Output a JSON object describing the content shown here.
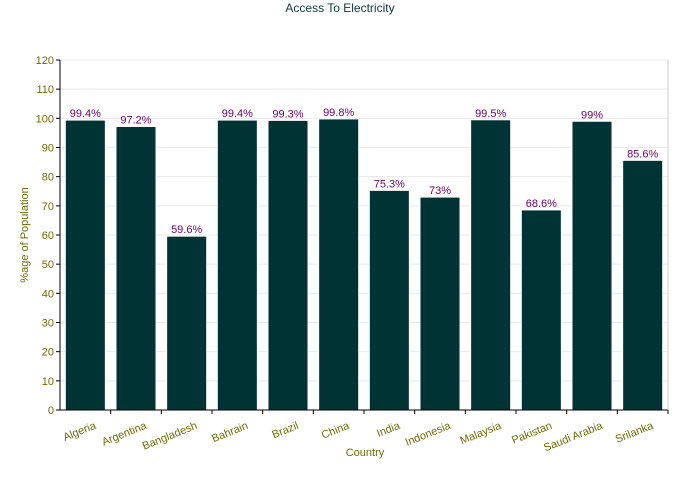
{
  "chart_data": {
    "type": "bar",
    "title": "Access To Electricity",
    "xlabel": "Country",
    "ylabel": "%age of Population",
    "categories": [
      "Algeria",
      "Argentina",
      "Bangladesh",
      "Bahrain",
      "Brazil",
      "China",
      "India",
      "Indonesia",
      "Malaysia",
      "Pakistan",
      "Saudi Arabia",
      "Srilanka"
    ],
    "values": [
      99.4,
      97.2,
      59.6,
      99.4,
      99.3,
      99.8,
      75.3,
      73,
      99.5,
      68.6,
      99,
      85.6
    ],
    "data_labels": [
      "99.4%",
      "97.2%",
      "59.6%",
      "99.4%",
      "99.3%",
      "99.8%",
      "75.3%",
      "73%",
      "99.5%",
      "68.6%",
      "99%",
      "85.6%"
    ],
    "ylim": [
      0,
      120
    ],
    "yticks": [
      0,
      10,
      20,
      30,
      40,
      50,
      60,
      70,
      80,
      90,
      100,
      110,
      120
    ],
    "grid": true,
    "colors": {
      "bar": "#003333",
      "data_label": "#660066",
      "axis_text": "#6b6b00",
      "title": "#0b3a3a"
    }
  }
}
